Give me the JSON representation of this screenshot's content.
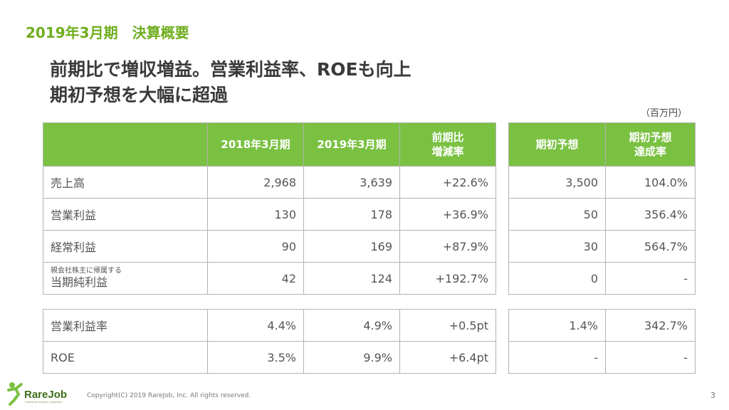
{
  "section_title": "2019年3月期　決算概要",
  "headline": {
    "line1": "前期比で増収増益。営業利益率、ROEも向上",
    "line2": "期初予想を大幅に超過"
  },
  "unit_label": "（百万円）",
  "table_main": {
    "headers": [
      "",
      "2018年3月期",
      "2019年3月期",
      "前期比\n増減率"
    ],
    "rows": [
      {
        "label": "売上高",
        "note": "",
        "values": [
          "2,968",
          "3,639",
          "+22.6%"
        ]
      },
      {
        "label": "営業利益",
        "note": "",
        "values": [
          "130",
          "178",
          "+36.9%"
        ]
      },
      {
        "label": "経常利益",
        "note": "",
        "values": [
          "90",
          "169",
          "+87.9%"
        ]
      },
      {
        "label": "当期純利益",
        "note": "親会社株主に帰属する",
        "values": [
          "42",
          "124",
          "+192.7%"
        ]
      }
    ]
  },
  "table_forecast": {
    "headers": [
      "期初予想",
      "期初予想\n達成率"
    ],
    "rows": [
      [
        "3,500",
        "104.0%"
      ],
      [
        "50",
        "356.4%"
      ],
      [
        "30",
        "564.7%"
      ],
      [
        "0",
        "-"
      ]
    ]
  },
  "table_ratio": {
    "rows": [
      {
        "label": "営業利益率",
        "values": [
          "4.4%",
          "4.9%",
          "+0.5pt"
        ]
      },
      {
        "label": "ROE",
        "values": [
          "3.5%",
          "9.9%",
          "+6.4pt"
        ]
      }
    ]
  },
  "table_ratio_forecast": {
    "rows": [
      [
        "1.4%",
        "342.7%"
      ],
      [
        "-",
        "-"
      ]
    ]
  },
  "footer": {
    "logo_text": "RareJob",
    "logo_tagline": "Chances for everyone, everywhere",
    "copyright": "Copyright(C) 2019 RareJob, Inc. All rights reserved.",
    "page_number": "3"
  },
  "colors": {
    "accent_green": "#7ac142",
    "title_green": "#6fae1e"
  }
}
